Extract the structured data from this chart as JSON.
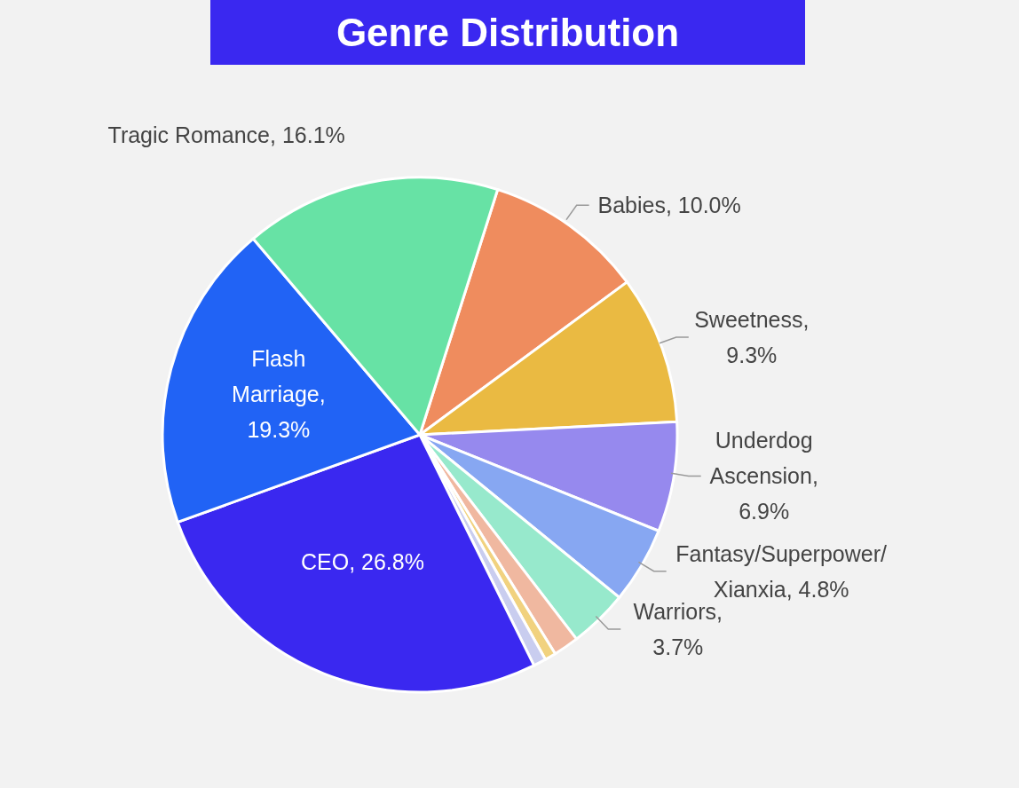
{
  "chart_data": {
    "type": "pie",
    "title": "Genre Distribution",
    "categories": [
      "Babies",
      "Sweetness",
      "Underdog Ascension",
      "Fantasy/Superpower/Xianxia",
      "Warriors",
      null,
      null,
      null,
      "CEO",
      "Flash Marriage",
      "Tragic Romance"
    ],
    "values": [
      10.0,
      9.3,
      6.9,
      4.8,
      3.7,
      1.6,
      0.7,
      0.8,
      26.8,
      19.3,
      16.1
    ],
    "colors": [
      "#ef8c5e",
      "#eaba42",
      "#9689ee",
      "#87a7f2",
      "#97e9cc",
      "#f0b8a0",
      "#f1d27f",
      "#c9cdef",
      "#3a28f0",
      "#2163f5",
      "#67e2a5"
    ],
    "value_labels": [
      ", 10.0%",
      ", 9.3%",
      ", 6.9%",
      ", 4.8%",
      ", 3.7%",
      null,
      null,
      null,
      ", 26.8%",
      ", 19.3%",
      ", 16.1%"
    ],
    "legend": false
  }
}
